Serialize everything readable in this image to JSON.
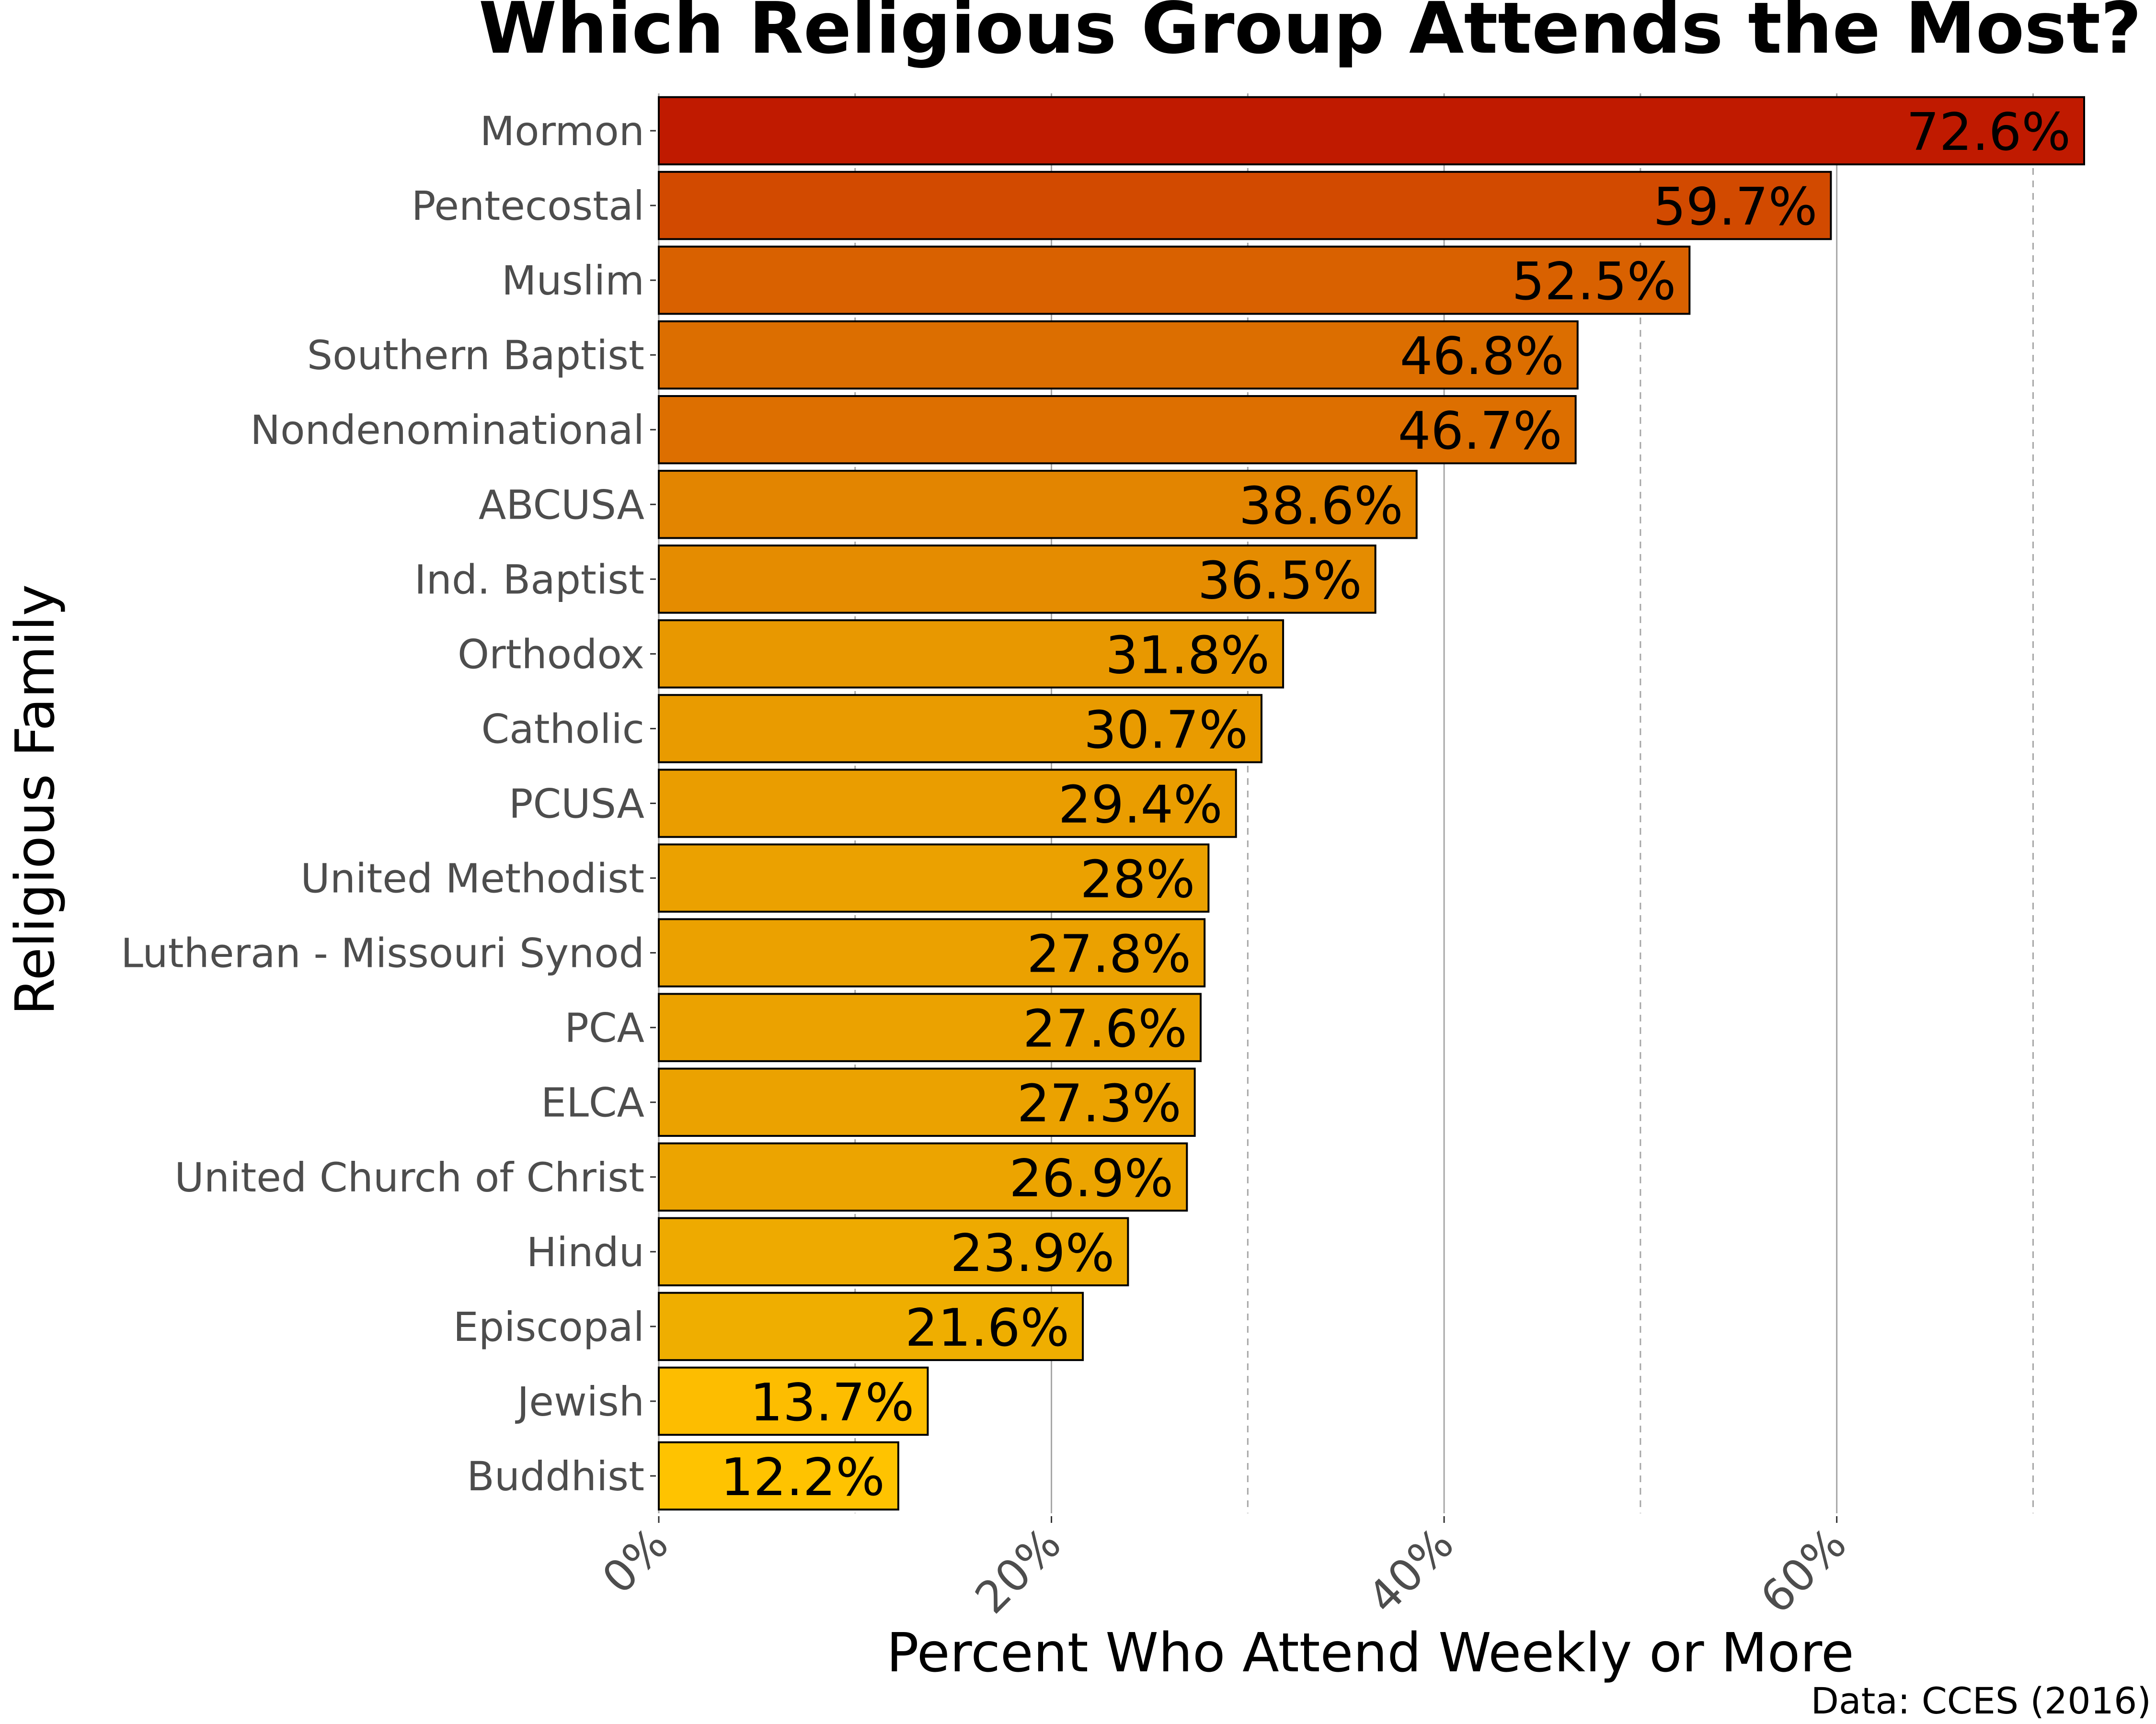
{
  "chart_data": {
    "type": "bar",
    "orientation": "horizontal",
    "title": "Which Religious Group Attends the Most?",
    "xlabel": "Percent Who Attend Weekly or More",
    "ylabel": "Religious Family",
    "caption": "Data: CCES (2016)",
    "xlim": [
      0,
      72.6
    ],
    "x_ticks": [
      {
        "value": 0,
        "label": "0%"
      },
      {
        "value": 20,
        "label": "20%"
      },
      {
        "value": 40,
        "label": "40%"
      },
      {
        "value": 60,
        "label": "60%"
      }
    ],
    "x_minor_gridlines": [
      10,
      30,
      50,
      70
    ],
    "grid": true,
    "legend": "none",
    "color_scale": {
      "low": "#ffc300",
      "high": "#c01a00"
    },
    "categories": [
      "Mormon",
      "Pentecostal",
      "Muslim",
      "Southern Baptist",
      "Nondenominational",
      "ABCUSA",
      "Ind. Baptist",
      "Orthodox",
      "Catholic",
      "PCUSA",
      "United Methodist",
      "Lutheran - Missouri Synod",
      "PCA",
      "ELCA",
      "United Church of Christ",
      "Hindu",
      "Episcopal",
      "Jewish",
      "Buddhist"
    ],
    "values": [
      72.6,
      59.7,
      52.5,
      46.8,
      46.7,
      38.6,
      36.5,
      31.8,
      30.7,
      29.4,
      28.0,
      27.8,
      27.6,
      27.3,
      26.9,
      23.9,
      21.6,
      13.7,
      12.2
    ],
    "value_labels": [
      "72.6%",
      "59.7%",
      "52.5%",
      "46.8%",
      "46.7%",
      "38.6%",
      "36.5%",
      "31.8%",
      "30.7%",
      "29.4%",
      "28%",
      "27.8%",
      "27.6%",
      "27.3%",
      "26.9%",
      "23.9%",
      "21.6%",
      "13.7%",
      "12.2%"
    ],
    "bar_colors": [
      "#c01a00",
      "#d24a00",
      "#d96100",
      "#dc6e00",
      "#dd6f00",
      "#e38500",
      "#e58c00",
      "#e89800",
      "#e99b00",
      "#ea9d00",
      "#eba100",
      "#eba100",
      "#eba200",
      "#eba200",
      "#eca400",
      "#eeaa00",
      "#efae00",
      "#fdbd00",
      "#ffc300"
    ]
  }
}
